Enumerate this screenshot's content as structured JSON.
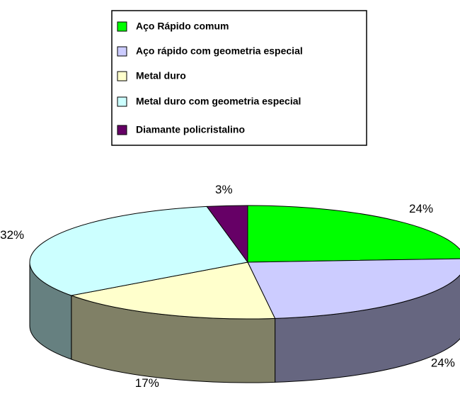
{
  "chart_data": {
    "type": "pie",
    "categories": [
      "Aço Rápido comum",
      "Aço rápido com geometria especial",
      "Metal duro",
      "Metal duro com geometria especial",
      "Diamante policristalino"
    ],
    "values": [
      24,
      24,
      17,
      32,
      3
    ],
    "value_labels": [
      "24%",
      "24%",
      "17%",
      "32%",
      "3%"
    ],
    "colors": [
      "#00ff00",
      "#ccccff",
      "#ffffcc",
      "#ccffff",
      "#660066"
    ],
    "legend": "top"
  }
}
